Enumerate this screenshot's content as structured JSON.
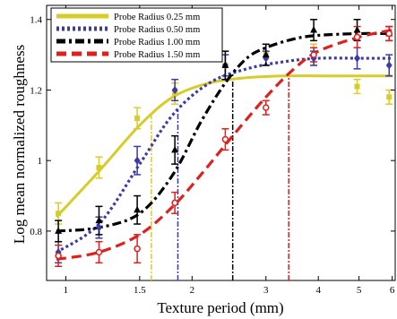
{
  "chart_data": {
    "type": "line",
    "xlabel": "Texture period (mm)",
    "ylabel": "Log mean normalized roughness",
    "x_scale": "log",
    "xlim": [
      0.9,
      6.1
    ],
    "ylim": [
      0.66,
      1.44
    ],
    "x_ticks": [
      {
        "value": 1,
        "label": "1"
      },
      {
        "value": 1.5,
        "label": "1.5"
      },
      {
        "value": 2,
        "label": "2"
      },
      {
        "value": 3,
        "label": "3"
      },
      {
        "value": 4,
        "label": "4"
      },
      {
        "value": 5,
        "label": "5"
      },
      {
        "value": 6,
        "label": "6"
      }
    ],
    "y_ticks": [
      {
        "value": 0.8,
        "label": "0.8"
      },
      {
        "value": 1.0,
        "label": "1"
      },
      {
        "value": 1.2,
        "label": "1.2"
      },
      {
        "value": 1.4,
        "label": "1.4"
      }
    ],
    "grid": false,
    "legend_position": "top-left",
    "series": [
      {
        "name": "Probe Radius 0.25 mm",
        "color": "#d6cc2a",
        "line_style": "solid",
        "marker": "square",
        "x": [
          0.96,
          1.2,
          1.48,
          1.82,
          2.4,
          3.0,
          3.9,
          4.95,
          5.9
        ],
        "y": [
          0.85,
          0.98,
          1.12,
          1.19,
          1.27,
          1.3,
          1.3,
          1.21,
          1.18
        ],
        "err": [
          0.03,
          0.03,
          0.03,
          0.03,
          0.04,
          0.03,
          0.03,
          0.02,
          0.02
        ],
        "fit_x": [
          0.95,
          1.2,
          1.5,
          1.8,
          2.2,
          2.7,
          3.3,
          4.0,
          5.0,
          6.0
        ],
        "fit_y": [
          0.84,
          0.97,
          1.1,
          1.18,
          1.22,
          1.235,
          1.24,
          1.24,
          1.24,
          1.24
        ],
        "threshold_x": 1.6
      },
      {
        "name": "Probe Radius 0.50 mm",
        "color": "#3b3ba6",
        "line_style": "dotted",
        "marker": "diamond",
        "x": [
          0.96,
          1.2,
          1.48,
          1.82,
          2.4,
          3.0,
          3.9,
          4.95,
          5.9
        ],
        "y": [
          0.74,
          0.81,
          1.0,
          1.2,
          1.27,
          1.29,
          1.29,
          1.29,
          1.27
        ],
        "err": [
          0.03,
          0.03,
          0.04,
          0.03,
          0.03,
          0.02,
          0.02,
          0.03,
          0.03
        ],
        "fit_x": [
          0.95,
          1.2,
          1.5,
          1.8,
          2.2,
          2.7,
          3.3,
          4.0,
          5.0,
          6.0
        ],
        "fit_y": [
          0.74,
          0.82,
          0.99,
          1.13,
          1.22,
          1.26,
          1.28,
          1.29,
          1.29,
          1.29
        ],
        "threshold_x": 1.85
      },
      {
        "name": "Probe Radius 1.00 mm",
        "color": "#000000",
        "line_style": "dashdot",
        "marker": "triangle",
        "x": [
          0.96,
          1.2,
          1.48,
          1.82,
          2.4,
          3.0,
          3.9,
          4.95,
          5.9
        ],
        "y": [
          0.8,
          0.83,
          0.86,
          1.03,
          1.27,
          1.3,
          1.37,
          1.37,
          1.36
        ],
        "err": [
          0.03,
          0.04,
          0.04,
          0.04,
          0.04,
          0.03,
          0.03,
          0.03,
          0.02
        ],
        "fit_x": [
          0.95,
          1.2,
          1.5,
          1.8,
          2.1,
          2.4,
          2.7,
          3.0,
          3.5,
          4.0,
          5.0,
          6.0
        ],
        "fit_y": [
          0.8,
          0.81,
          0.85,
          0.96,
          1.11,
          1.22,
          1.29,
          1.32,
          1.345,
          1.355,
          1.36,
          1.36
        ],
        "threshold_x": 2.5
      },
      {
        "name": "Probe Radius 1.50 mm",
        "color": "#e01f1f",
        "line_style": "dashed",
        "marker": "circle",
        "x": [
          0.96,
          1.2,
          1.48,
          1.82,
          2.4,
          3.0,
          3.9,
          4.95,
          5.9
        ],
        "y": [
          0.73,
          0.74,
          0.75,
          0.88,
          1.06,
          1.15,
          1.3,
          1.35,
          1.36
        ],
        "err": [
          0.03,
          0.03,
          0.04,
          0.03,
          0.03,
          0.02,
          0.02,
          0.03,
          0.02
        ],
        "fit_x": [
          0.95,
          1.2,
          1.5,
          1.8,
          2.1,
          2.5,
          3.0,
          3.5,
          4.0,
          5.0,
          6.0
        ],
        "fit_y": [
          0.72,
          0.74,
          0.79,
          0.87,
          0.96,
          1.07,
          1.18,
          1.26,
          1.31,
          1.35,
          1.37
        ],
        "threshold_x": 3.4
      }
    ]
  }
}
